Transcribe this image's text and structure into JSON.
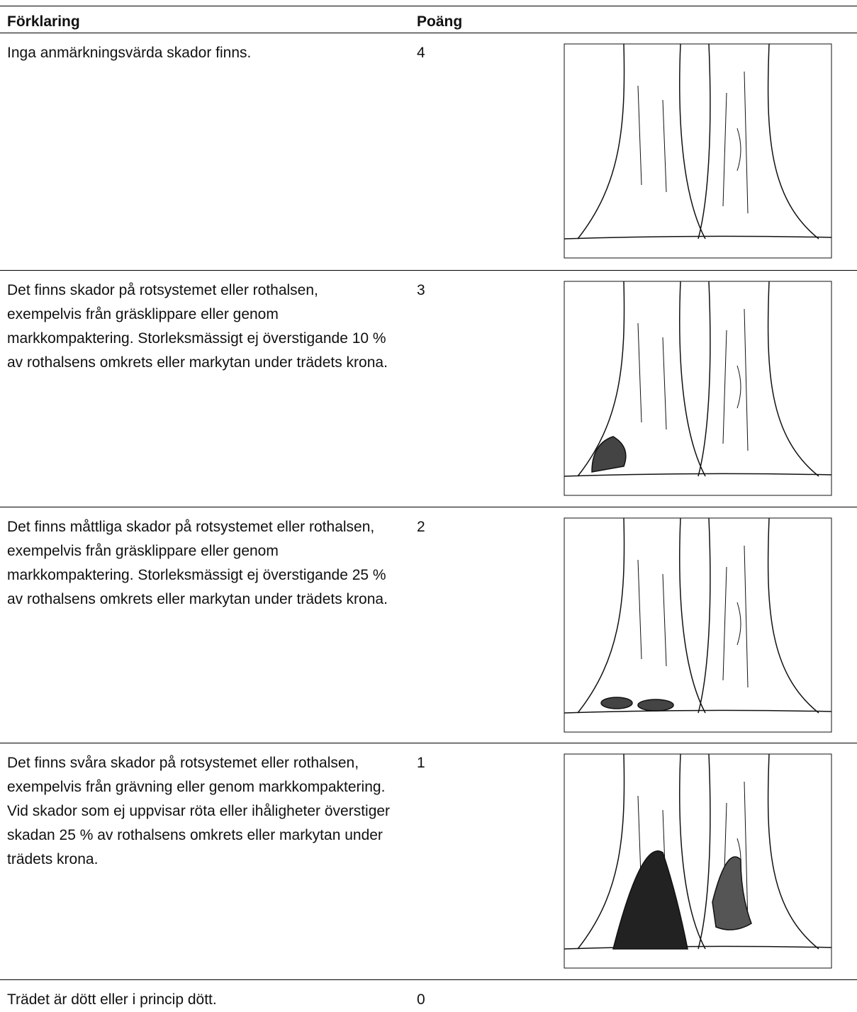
{
  "table": {
    "header": [
      "Förklaring",
      "Poäng"
    ],
    "rows": [
      [
        "Inga anmärkningsvärda skador finns.",
        4
      ],
      [
        "Det finns skador på rotsystemet eller rothalsen, exempelvis från gräsklippare eller genom markkompaktering. Storleksmässigt ej överstigande 10 % av rothalsens omkrets eller markytan under trädets krona.",
        3
      ],
      [
        "Det finns måttliga skador på rotsystemet eller rothalsen, exempelvis från gräsklippare eller genom markkompaktering. Storleksmässigt ej överstigande 25 % av rothalsens omkrets eller markytan under trädets krona.",
        2
      ],
      [
        "Det finns svåra skador på rotsystemet eller rothalsen, exempelvis från grävning eller genom markkompaktering. Vid skador som ej uppvisar röta eller ihåligheter överstiger skadan 25 % av rothalsens omkrets eller markytan under trädets krona.",
        1
      ],
      [
        "Trädet är dött eller i princip dött.",
        0
      ]
    ]
  }
}
